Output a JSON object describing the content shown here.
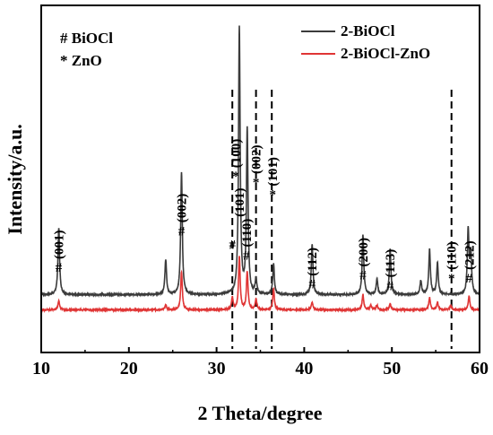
{
  "chart_data": {
    "type": "line",
    "xlabel": "2 Theta/degree",
    "ylabel": "Intensity/a.u.",
    "xlim": [
      10,
      60
    ],
    "xticks": [
      "10",
      "20",
      "30",
      "40",
      "50",
      "60"
    ],
    "yticks": [],
    "grid": false,
    "legend_placement": "top-right",
    "phase_key": [
      {
        "symbol": "#",
        "name": "BiOCl"
      },
      {
        "symbol": "*",
        "name": "ZnO"
      }
    ],
    "series": [
      {
        "name": "2-BiOCl",
        "color": "#3b3b3b",
        "baseline": 0.1,
        "peaks": [
          [
            12.0,
            0.44
          ],
          [
            24.2,
            0.23
          ],
          [
            26.0,
            0.8
          ],
          [
            32.6,
            1.75
          ],
          [
            33.5,
            1.08
          ],
          [
            34.5,
            0.1
          ],
          [
            36.5,
            0.2
          ],
          [
            40.9,
            0.33
          ],
          [
            46.7,
            0.39
          ],
          [
            48.3,
            0.1
          ],
          [
            49.8,
            0.3
          ],
          [
            53.3,
            0.09
          ],
          [
            54.3,
            0.3
          ],
          [
            55.2,
            0.21
          ],
          [
            58.7,
            0.42
          ],
          [
            59.0,
            0.26
          ]
        ]
      },
      {
        "name": "2-BiOCl-ZnO",
        "color": "#e03535",
        "baseline": 0.0,
        "peaks": [
          [
            12.0,
            0.06
          ],
          [
            24.2,
            0.03
          ],
          [
            26.0,
            0.25
          ],
          [
            31.8,
            0.08
          ],
          [
            32.6,
            0.35
          ],
          [
            33.5,
            0.25
          ],
          [
            34.5,
            0.07
          ],
          [
            36.5,
            0.14
          ],
          [
            40.9,
            0.05
          ],
          [
            46.7,
            0.1
          ],
          [
            47.6,
            0.03
          ],
          [
            48.3,
            0.03
          ],
          [
            49.8,
            0.04
          ],
          [
            54.3,
            0.08
          ],
          [
            55.2,
            0.05
          ],
          [
            56.7,
            0.03
          ],
          [
            58.8,
            0.09
          ]
        ]
      }
    ],
    "reference_lines": [
      31.8,
      34.5,
      36.3,
      56.8
    ],
    "annotations": [
      {
        "x": 12.0,
        "y": 0.25,
        "symbol": "#",
        "label": "(001)"
      },
      {
        "x": 26.0,
        "y": 0.49,
        "symbol": "#",
        "label": "(002)"
      },
      {
        "x": 31.8,
        "y": 0.4,
        "symbol": "#",
        "label": ""
      },
      {
        "x": 32.2,
        "y": 0.85,
        "symbol": "*",
        "label": "(100)"
      },
      {
        "x": 32.6,
        "y": 0.61,
        "symbol": "",
        "label": "(101)"
      },
      {
        "x": 33.4,
        "y": 0.33,
        "symbol": "#",
        "label": "(110)"
      },
      {
        "x": 34.5,
        "y": 0.81,
        "symbol": "*",
        "label": "(002)"
      },
      {
        "x": 36.4,
        "y": 0.73,
        "symbol": "*",
        "label": "(101)"
      },
      {
        "x": 40.9,
        "y": 0.14,
        "symbol": "#",
        "label": "(112)"
      },
      {
        "x": 46.7,
        "y": 0.2,
        "symbol": "#",
        "label": "(200)"
      },
      {
        "x": 49.8,
        "y": 0.13,
        "symbol": "#",
        "label": "(113)"
      },
      {
        "x": 56.8,
        "y": 0.18,
        "symbol": "*",
        "label": "(110)"
      },
      {
        "x": 58.8,
        "y": 0.18,
        "symbol": "#",
        "label": "(212)"
      }
    ]
  }
}
